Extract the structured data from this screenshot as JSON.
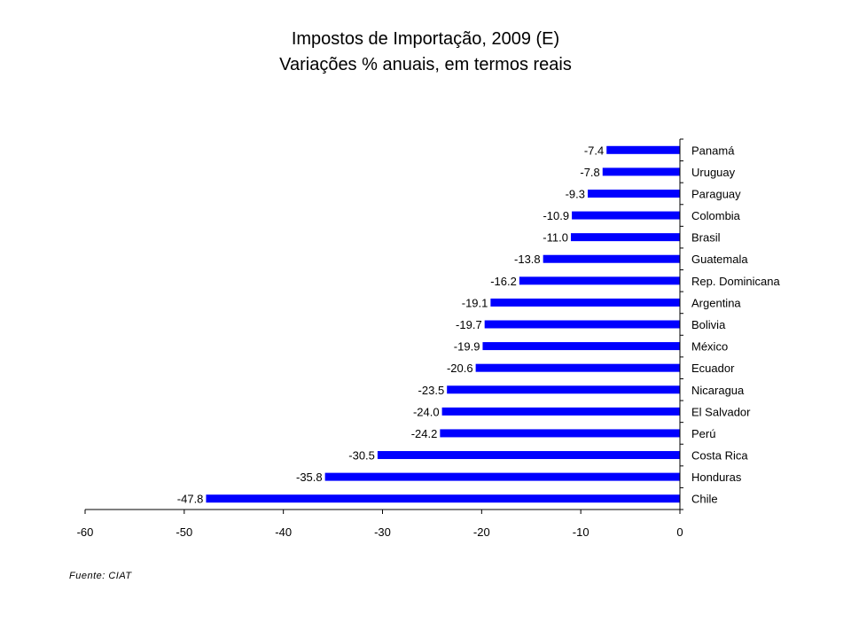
{
  "chart_data": {
    "type": "bar",
    "orientation": "horizontal",
    "title": "Impostos de Importação, 2009 (E)",
    "subtitle": "Variações % anuais, em termos reais",
    "categories": [
      "Panamá",
      "Uruguay",
      "Paraguay",
      "Colombia",
      "Brasil",
      "Guatemala",
      "Rep. Dominicana",
      "Argentina",
      "Bolivia",
      "México",
      "Ecuador",
      "Nicaragua",
      "El Salvador",
      "Perú",
      "Costa Rica",
      "Honduras",
      "Chile"
    ],
    "values": [
      -7.4,
      -7.8,
      -9.3,
      -10.9,
      -11.0,
      -13.8,
      -16.2,
      -19.1,
      -19.7,
      -19.9,
      -20.6,
      -23.5,
      -24.0,
      -24.2,
      -30.5,
      -35.8,
      -47.8
    ],
    "value_labels": [
      "-7.4",
      "-7.8",
      "-9.3",
      "-10.9",
      "-11.0",
      "-13.8",
      "-16.2",
      "-19.1",
      "-19.7",
      "-19.9",
      "-20.6",
      "-23.5",
      "-24.0",
      "-24.2",
      "-30.5",
      "-35.8",
      "-47.8"
    ],
    "xlim": [
      -60,
      0
    ],
    "xticks": [
      -60,
      -50,
      -40,
      -30,
      -20,
      -10,
      0
    ],
    "xlabel": "",
    "ylabel": "",
    "grid": false,
    "legend": "none",
    "bar_color": "#0000FF"
  },
  "source_note": "Fuente: CIAT"
}
